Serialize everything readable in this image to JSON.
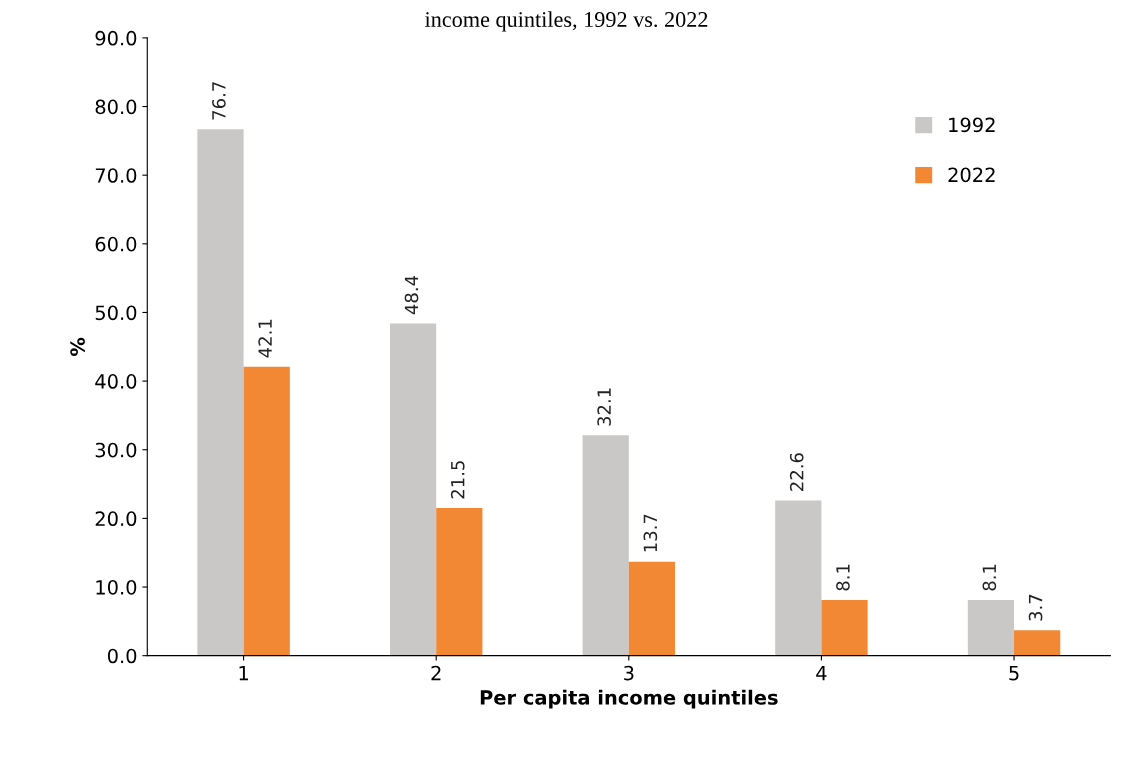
{
  "chart_data": {
    "type": "bar",
    "title": "income quintiles, 1992 vs. 2022",
    "xlabel": "Per capita income quintiles",
    "ylabel": "%",
    "categories": [
      "1",
      "2",
      "3",
      "4",
      "5"
    ],
    "series": [
      {
        "name": "1992",
        "color": "#c9c8c6",
        "values": [
          76.7,
          48.4,
          32.1,
          22.6,
          8.1
        ]
      },
      {
        "name": "2022",
        "color": "#f28834",
        "values": [
          42.1,
          21.5,
          13.7,
          8.1,
          3.7
        ]
      }
    ],
    "ylim": [
      0,
      90
    ],
    "yticks": [
      {
        "value": 0,
        "label": "0.0"
      },
      {
        "value": 10,
        "label": "10.0"
      },
      {
        "value": 20,
        "label": "20.0"
      },
      {
        "value": 30,
        "label": "30.0"
      },
      {
        "value": 40,
        "label": "40.0"
      },
      {
        "value": 50,
        "label": "50.0"
      },
      {
        "value": 60,
        "label": "60.0"
      },
      {
        "value": 70,
        "label": "70.0"
      },
      {
        "value": 80,
        "label": "80.0"
      },
      {
        "value": 90,
        "label": "90.0"
      }
    ],
    "data_labels": true,
    "legend": "top right",
    "grid": false
  }
}
